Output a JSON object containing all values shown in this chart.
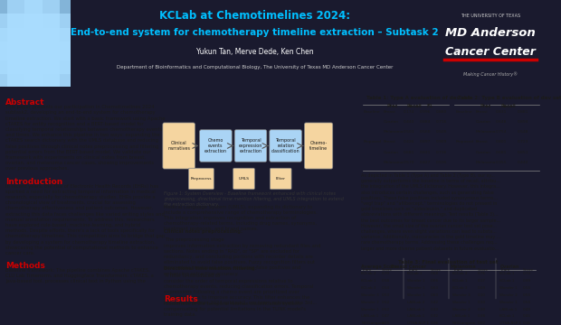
{
  "title_line1": "KCLab at Chemotimelines 2024:",
  "title_line2": "End-to-end system for chemotherapy timeline extraction – Subtask 2",
  "authors": "Yukun Tan, Merve Dede, Ken Chen",
  "affiliation": "Department of Bioinformatics and Computational Biology, The University of Texas MD Anderson Cancer Center",
  "header_bg": "#1a1a2e",
  "header_text_color": "#ffffff",
  "title_color": "#00bfff",
  "accent_red": "#cc0000",
  "body_bg": "#f5f5f5",
  "section_title_color": "#cc0000",
  "logo_text_line1": "THE UNIVERSITY OF TEXAS",
  "logo_text_line2": "MD Anderson",
  "logo_text_line3": "Cancer Center",
  "logo_text_line4": "Making Cancer History®",
  "logo_underline_color": "#cc0000"
}
